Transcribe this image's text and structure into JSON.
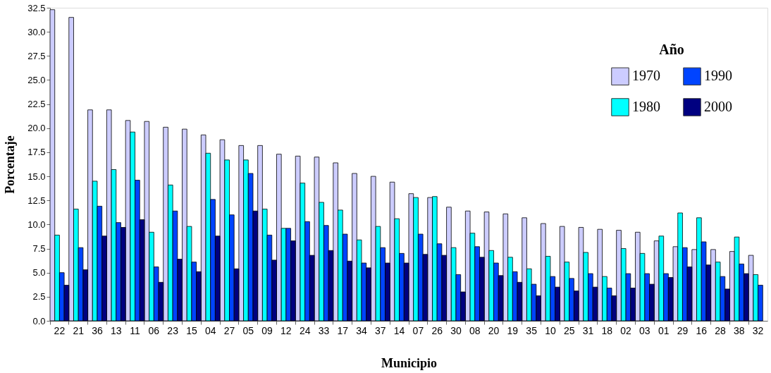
{
  "chart_data": {
    "type": "bar",
    "xlabel": "Municipio",
    "ylabel": "Porcentaje",
    "legend_title": "Año",
    "legend": "top right",
    "grid": false,
    "categories": [
      "22",
      "21",
      "36",
      "13",
      "11",
      "06",
      "23",
      "15",
      "04",
      "27",
      "05",
      "09",
      "12",
      "24",
      "33",
      "17",
      "34",
      "37",
      "14",
      "07",
      "26",
      "30",
      "08",
      "20",
      "19",
      "35",
      "10",
      "25",
      "31",
      "18",
      "02",
      "03",
      "01",
      "29",
      "16",
      "28",
      "38",
      "32"
    ],
    "ylim": [
      0,
      32.5
    ],
    "yticks": [
      {
        "value": 0,
        "label": "0.0"
      },
      {
        "value": 2.5,
        "label": "2.5"
      },
      {
        "value": 5,
        "label": "5.0"
      },
      {
        "value": 7.5,
        "label": "7.5"
      },
      {
        "value": 10,
        "label": "10.0"
      },
      {
        "value": 12.5,
        "label": "12.5"
      },
      {
        "value": 15,
        "label": "15.0"
      },
      {
        "value": 17.5,
        "label": "17.5"
      },
      {
        "value": 20,
        "label": "20.0"
      },
      {
        "value": 22.5,
        "label": "22.5"
      },
      {
        "value": 25,
        "label": "25.0"
      },
      {
        "value": 27.5,
        "label": "27.5"
      },
      {
        "value": 30,
        "label": "30.0"
      },
      {
        "value": 32.5,
        "label": "32.5"
      }
    ],
    "series": [
      {
        "name": "1970",
        "color": "#ccccff",
        "values": [
          32.3,
          31.5,
          21.9,
          21.9,
          20.8,
          20.7,
          20.1,
          19.9,
          19.3,
          18.8,
          18.2,
          18.2,
          17.3,
          17.1,
          17.0,
          16.4,
          15.3,
          15.0,
          14.4,
          13.2,
          12.8,
          11.8,
          11.4,
          11.3,
          11.1,
          10.7,
          10.1,
          9.8,
          9.7,
          9.5,
          9.4,
          9.2,
          8.3,
          7.7,
          7.4,
          7.4,
          7.2,
          6.8
        ]
      },
      {
        "name": "1980",
        "color": "#00ffff",
        "values": [
          8.9,
          11.6,
          14.5,
          15.7,
          19.6,
          9.2,
          14.1,
          9.8,
          17.4,
          16.7,
          16.7,
          11.6,
          9.6,
          14.3,
          12.3,
          11.5,
          8.4,
          9.8,
          10.6,
          12.8,
          12.9,
          7.6,
          9.1,
          7.3,
          6.6,
          5.4,
          6.7,
          6.1,
          7.1,
          4.6,
          7.5,
          7.0,
          8.8,
          11.2,
          10.7,
          6.1,
          8.7,
          4.8
        ]
      },
      {
        "name": "1990",
        "color": "#0044ff",
        "values": [
          5.0,
          7.6,
          11.9,
          10.2,
          14.6,
          5.6,
          11.4,
          6.1,
          12.6,
          11.0,
          15.3,
          8.9,
          9.6,
          10.3,
          9.9,
          9.0,
          6.0,
          7.6,
          7.0,
          9.0,
          8.0,
          4.8,
          7.7,
          6.0,
          5.1,
          3.8,
          4.6,
          4.4,
          4.9,
          3.4,
          4.9,
          4.9,
          4.9,
          7.6,
          8.2,
          4.6,
          5.9,
          3.7
        ]
      },
      {
        "name": "2000",
        "color": "#000080",
        "values": [
          3.7,
          5.3,
          8.8,
          9.7,
          10.5,
          4.0,
          6.4,
          5.1,
          8.8,
          5.4,
          11.4,
          6.3,
          8.3,
          6.8,
          7.3,
          6.2,
          5.5,
          6.0,
          6.0,
          6.9,
          6.8,
          3.0,
          6.6,
          4.7,
          4.0,
          2.6,
          3.5,
          3.1,
          3.5,
          2.6,
          3.4,
          3.8,
          4.5,
          5.6,
          5.8,
          3.3,
          4.9,
          null
        ]
      }
    ]
  }
}
